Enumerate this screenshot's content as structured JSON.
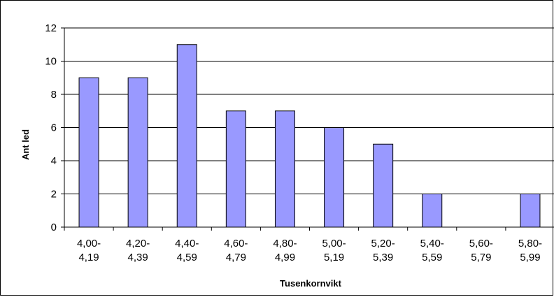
{
  "chart_data": {
    "type": "bar",
    "categories": [
      [
        "4,00-",
        "4,19"
      ],
      [
        "4,20-",
        "4,39"
      ],
      [
        "4,40-",
        "4,59"
      ],
      [
        "4,60-",
        "4,79"
      ],
      [
        "4,80-",
        "4,99"
      ],
      [
        "5,00-",
        "5,19"
      ],
      [
        "5,20-",
        "5,39"
      ],
      [
        "5,40-",
        "5,59"
      ],
      [
        "5,60-",
        "5,79"
      ],
      [
        "5,80-",
        "5,99"
      ]
    ],
    "values": [
      9,
      9,
      11,
      7,
      7,
      6,
      5,
      2,
      0,
      2
    ],
    "title": "",
    "xlabel": "Tusenkornvikt",
    "ylabel": "Ant led",
    "ylim": [
      0,
      12
    ],
    "yticks": [
      0,
      2,
      4,
      6,
      8,
      10,
      12
    ],
    "grid": true,
    "legend": "none",
    "colors": {
      "bar_fill": "#9999ff",
      "bar_stroke": "#000000",
      "grid": "#000000",
      "axis": "#000000"
    }
  }
}
